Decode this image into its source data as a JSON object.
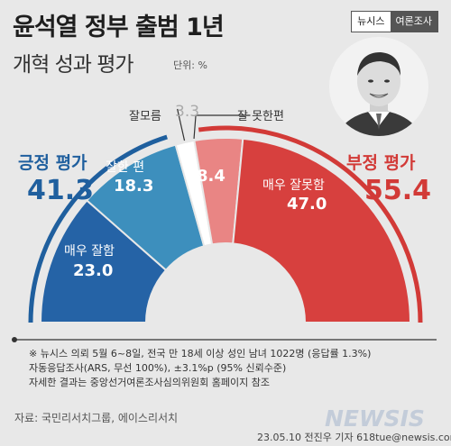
{
  "header": {
    "title": "윤석열 정부 출범 1년",
    "subtitle": "개혁 성과 평가",
    "unit": "단위: %",
    "brand_left": "뉴시스",
    "brand_right": "여론조사"
  },
  "summary": {
    "positive_label": "긍정 평가",
    "positive_value": "41.3",
    "negative_label": "부정 평가",
    "negative_value": "55.4"
  },
  "chart_data": {
    "type": "pie",
    "total": 100,
    "segments": [
      {
        "name": "매우 잘함",
        "value": 23.0,
        "color": "#2563a6"
      },
      {
        "name": "잘한 편",
        "value": 18.3,
        "color": "#3d8fbd"
      },
      {
        "name": "잘모름",
        "value": 3.3,
        "color": "#ffffff"
      },
      {
        "name": "잘 못한편",
        "value": 8.4,
        "color": "#e98584"
      },
      {
        "name": "매우 잘못함",
        "value": 47.0,
        "color": "#d7403e"
      }
    ],
    "labels": {
      "very_good": {
        "name": "매우 잘함",
        "value": "23.0"
      },
      "good": {
        "name": "잘한 편",
        "value": "18.3"
      },
      "dont_know": {
        "name": "잘모름",
        "value": "3.3"
      },
      "bad": {
        "name": "잘 못한편",
        "value": "8.4"
      },
      "very_bad": {
        "name": "매우 잘못함",
        "value": "47.0"
      }
    },
    "positive_ring_color": "#1f5f9e",
    "negative_ring_color": "#d23a37"
  },
  "notes": {
    "line1": "※ 뉴시스 의뢰 5월 6~8일, 전국 만 18세 이상 성인 남녀 1022명 (응답률 1.3%)",
    "line2": "자동응답조사(ARS, 무선 100%), ±3.1%p (95% 신뢰수준)",
    "line3": "자세한 결과는 중앙선거여론조사심의위원회 홈페이지 참조"
  },
  "source": "자료: 국민리서치그룹, 에이스리서치",
  "credit": "23.05.10 전진우 기자 618tue@newsis.com",
  "watermark": "NEWSIS"
}
